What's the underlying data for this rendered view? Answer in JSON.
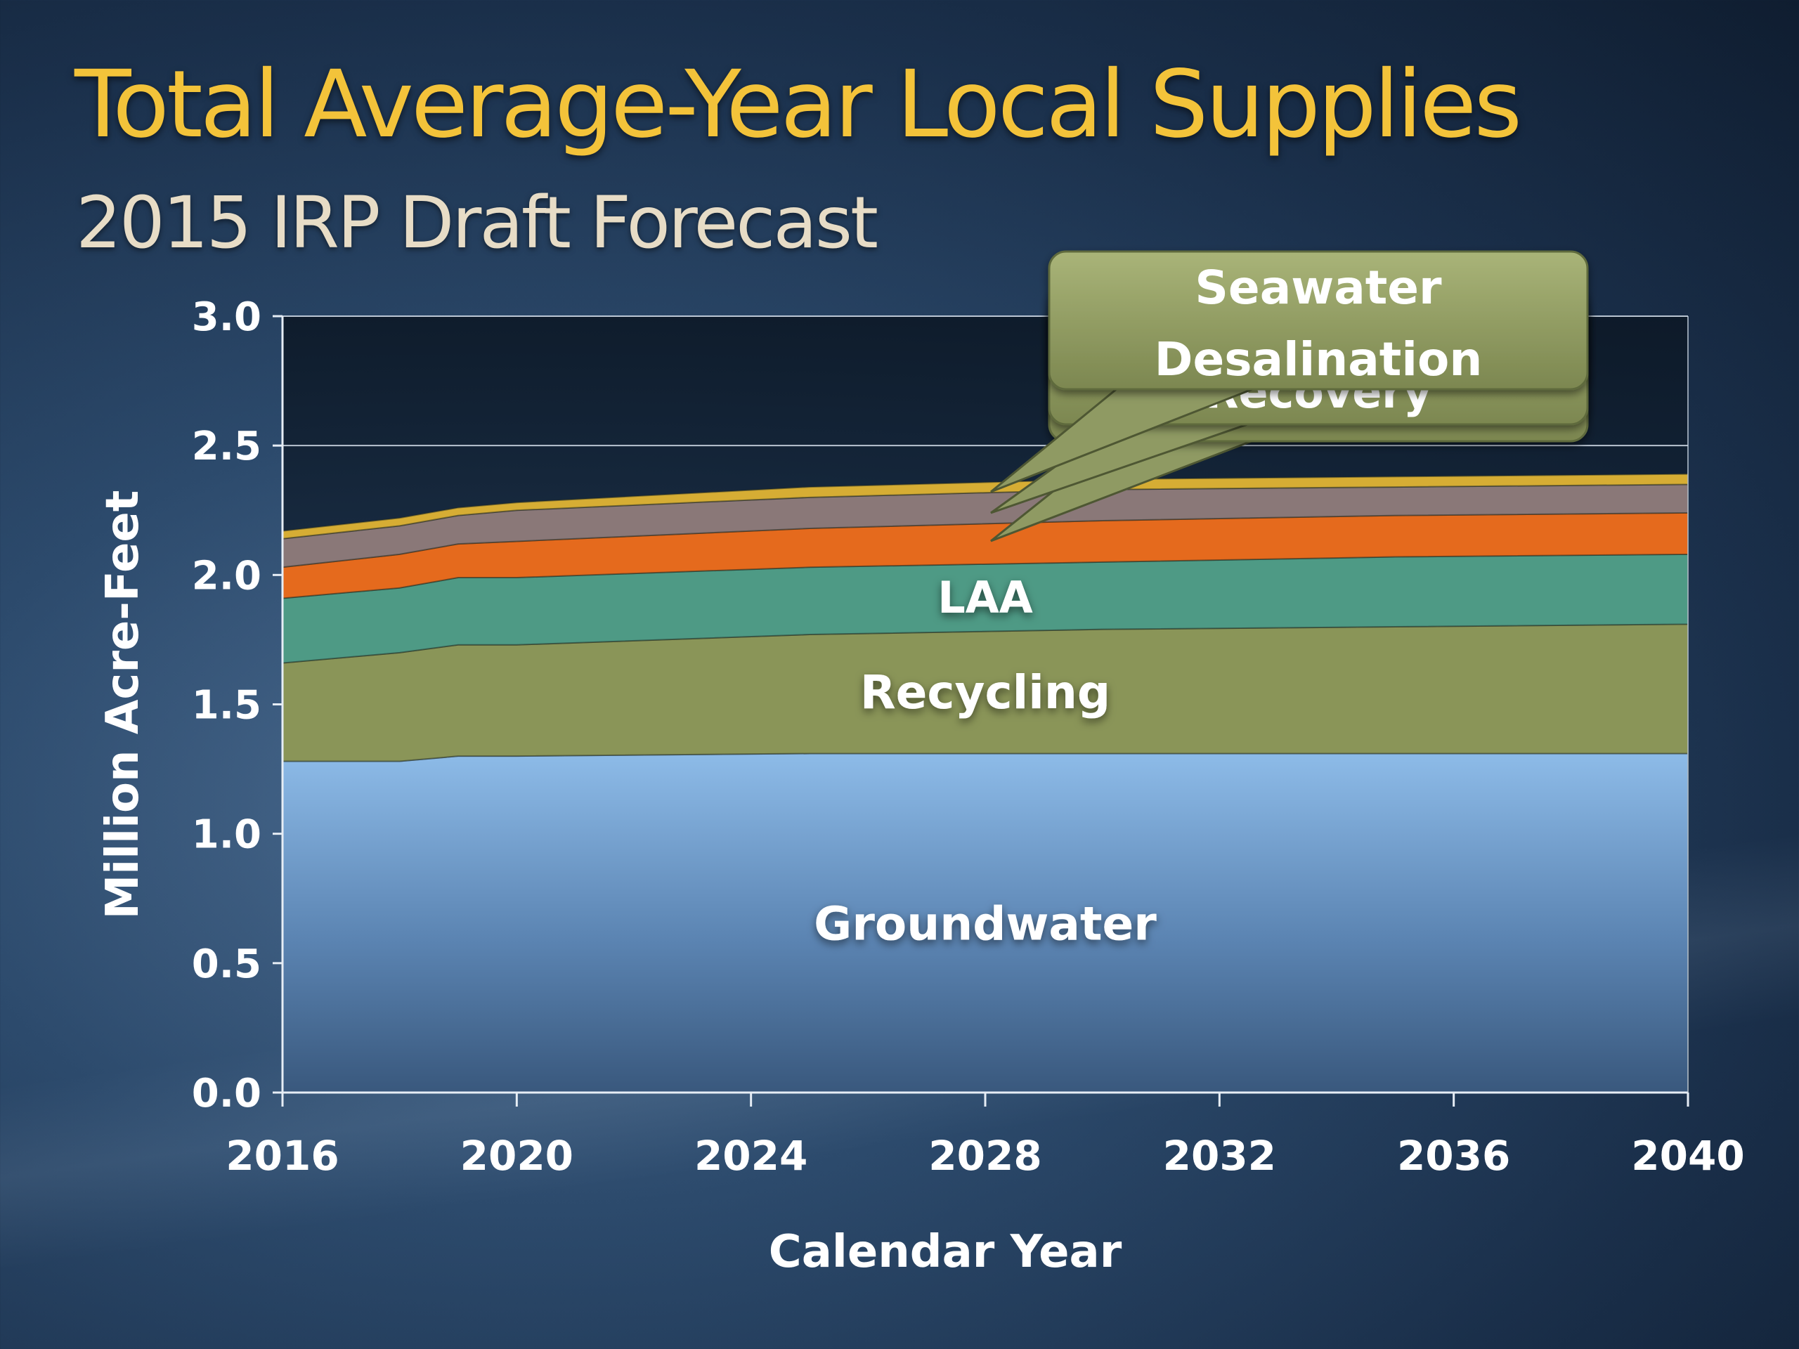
{
  "title": "Total Average-Year Local Supplies",
  "subtitle": "2015 IRP Draft Forecast",
  "chart_data": {
    "type": "area",
    "stacked": true,
    "xlabel": "Calendar Year",
    "ylabel": "Million Acre-Feet",
    "xlim": [
      2016,
      2040
    ],
    "ylim": [
      0,
      3.0
    ],
    "x_ticks": [
      "2016",
      "2020",
      "2024",
      "2028",
      "2032",
      "2036",
      "2040"
    ],
    "y_ticks": [
      "0.0",
      "0.5",
      "1.0",
      "1.5",
      "2.0",
      "2.5",
      "3.0"
    ],
    "grid": "horizontal",
    "x": [
      2016,
      2018,
      2019,
      2020,
      2025,
      2030,
      2035,
      2040
    ],
    "series": [
      {
        "name": "Groundwater",
        "color": "#7eaad7",
        "values": [
          1.28,
          1.28,
          1.3,
          1.3,
          1.31,
          1.31,
          1.31,
          1.31
        ]
      },
      {
        "name": "Recycling",
        "color": "#8a9558",
        "values": [
          0.38,
          0.42,
          0.43,
          0.43,
          0.46,
          0.48,
          0.49,
          0.5
        ]
      },
      {
        "name": "LAA",
        "color": "#4e9a85",
        "values": [
          0.25,
          0.25,
          0.26,
          0.26,
          0.26,
          0.26,
          0.27,
          0.27
        ]
      },
      {
        "name": "",
        "color": "#e56a1d",
        "values": [
          0.12,
          0.13,
          0.13,
          0.14,
          0.15,
          0.16,
          0.16,
          0.16
        ]
      },
      {
        "name": "",
        "color": "#8a7878",
        "values": [
          0.11,
          0.11,
          0.11,
          0.12,
          0.12,
          0.12,
          0.11,
          0.11
        ]
      },
      {
        "name": "",
        "color": "#d6ad34",
        "values": [
          0.03,
          0.03,
          0.03,
          0.03,
          0.04,
          0.04,
          0.04,
          0.04
        ]
      }
    ],
    "area_labels": [
      "Groundwater",
      "Recycling",
      "LAA"
    ],
    "callout": {
      "text_line1": "Seawater",
      "text_line2": "Desalination",
      "hidden_text": "Recovery",
      "color": "#8f9a63"
    }
  }
}
